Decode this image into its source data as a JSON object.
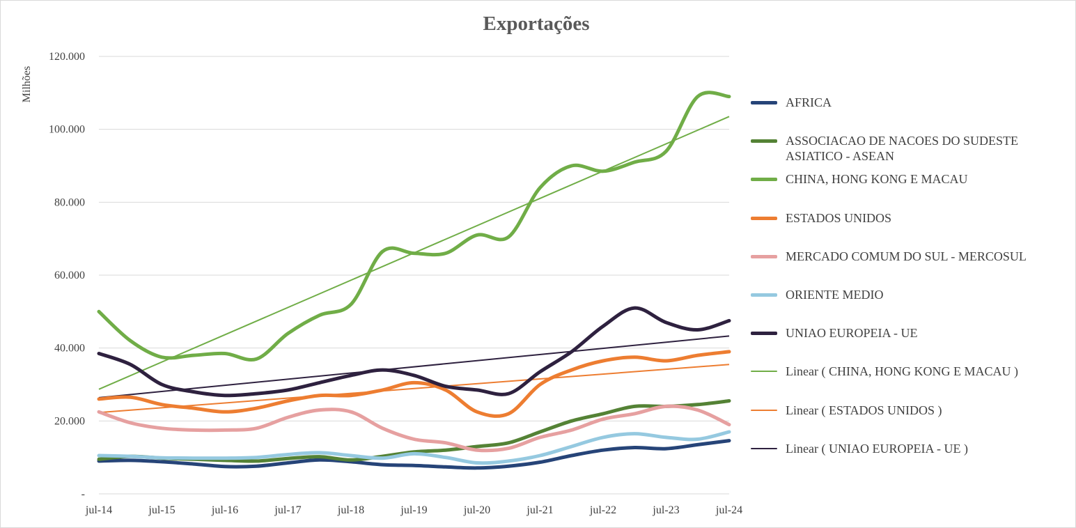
{
  "chart_data": {
    "type": "line",
    "title": "Exportações",
    "ylabel": "Milhões",
    "xlabel": "",
    "ylim": [
      0,
      120000
    ],
    "y_ticks": [
      {
        "value": 0,
        "label": "-"
      },
      {
        "value": 20000,
        "label": "20.000"
      },
      {
        "value": 40000,
        "label": "40.000"
      },
      {
        "value": 60000,
        "label": "60.000"
      },
      {
        "value": 80000,
        "label": "80.000"
      },
      {
        "value": 100000,
        "label": "100.000"
      },
      {
        "value": 120000,
        "label": "120.000"
      }
    ],
    "x_tick_labels": [
      "jul-14",
      "jul-15",
      "jul-16",
      "jul-17",
      "jul-18",
      "jul-19",
      "jul-20",
      "jul-21",
      "jul-22",
      "jul-23",
      "jul-24"
    ],
    "grid": true,
    "legend_position": "right",
    "x": [
      "jul-14",
      "jan-15",
      "jul-15",
      "jan-16",
      "jul-16",
      "jan-17",
      "jul-17",
      "jan-18",
      "jul-18",
      "jan-19",
      "jul-19",
      "jan-20",
      "jul-20",
      "jan-21",
      "jul-21",
      "jan-22",
      "jul-22",
      "jan-23",
      "jul-23",
      "jan-24",
      "jul-24"
    ],
    "series": [
      {
        "name": "AFRICA",
        "color": "#264478",
        "width": 5,
        "values": [
          9000,
          9200,
          8800,
          8200,
          7500,
          7600,
          8500,
          9300,
          8800,
          8000,
          7800,
          7400,
          7100,
          7600,
          8700,
          10500,
          12000,
          12700,
          12400,
          13500,
          14600
        ]
      },
      {
        "name": "ASSOCIACAO DE NACOES DO SUDESTE ASIATICO - ASEAN",
        "color": "#548235",
        "width": 5,
        "values": [
          9500,
          10300,
          9800,
          9500,
          9200,
          9000,
          9700,
          10200,
          9300,
          10300,
          11500,
          12000,
          13000,
          14000,
          17000,
          20000,
          22000,
          24000,
          24000,
          24500,
          25500
        ]
      },
      {
        "name": "CHINA, HONG KONG E MACAU",
        "color": "#70AD47",
        "width": 5,
        "values": [
          50000,
          42000,
          37500,
          38000,
          38500,
          37000,
          44000,
          49000,
          52000,
          66500,
          66000,
          66000,
          71000,
          70500,
          84000,
          90000,
          88500,
          91000,
          94000,
          109000,
          109000
        ]
      },
      {
        "name": "ESTADOS UNIDOS",
        "color": "#ED7D31",
        "width": 5,
        "values": [
          26000,
          26500,
          24500,
          23500,
          22500,
          23500,
          25500,
          27000,
          27000,
          28500,
          30500,
          28500,
          22500,
          22000,
          30000,
          34000,
          36500,
          37500,
          36500,
          38000,
          39000
        ]
      },
      {
        "name": "MERCADO COMUM DO SUL - MERCOSUL",
        "color": "#E6A0A0",
        "width": 5,
        "values": [
          22500,
          19500,
          18000,
          17500,
          17500,
          18000,
          21000,
          23000,
          22500,
          18000,
          15000,
          14000,
          12000,
          12500,
          15500,
          17500,
          20500,
          22000,
          24000,
          23000,
          19000
        ]
      },
      {
        "name": "ORIENTE MEDIO",
        "color": "#95C9E0",
        "width": 5,
        "values": [
          10500,
          10300,
          9900,
          9800,
          9800,
          10000,
          10800,
          11300,
          10500,
          9800,
          11000,
          10000,
          8500,
          9000,
          10500,
          13000,
          15500,
          16500,
          15500,
          15000,
          17000
        ]
      },
      {
        "name": "UNIAO EUROPEIA - UE",
        "color": "#2E213F",
        "width": 5,
        "values": [
          38500,
          35500,
          30000,
          28000,
          27000,
          27500,
          28500,
          30500,
          32500,
          34000,
          32500,
          29500,
          28500,
          27500,
          33500,
          39000,
          46000,
          51000,
          47000,
          45000,
          47500
        ]
      }
    ],
    "trendlines": [
      {
        "name": "Linear ( CHINA, HONG KONG E MACAU )",
        "color": "#70AD47",
        "start": 28700,
        "end": 103500
      },
      {
        "name": "Linear ( ESTADOS UNIDOS )",
        "color": "#ED7D31",
        "start": 22300,
        "end": 35500
      },
      {
        "name": "Linear ( UNIAO EUROPEIA - UE )",
        "color": "#2E213F",
        "start": 26400,
        "end": 43300
      }
    ]
  }
}
